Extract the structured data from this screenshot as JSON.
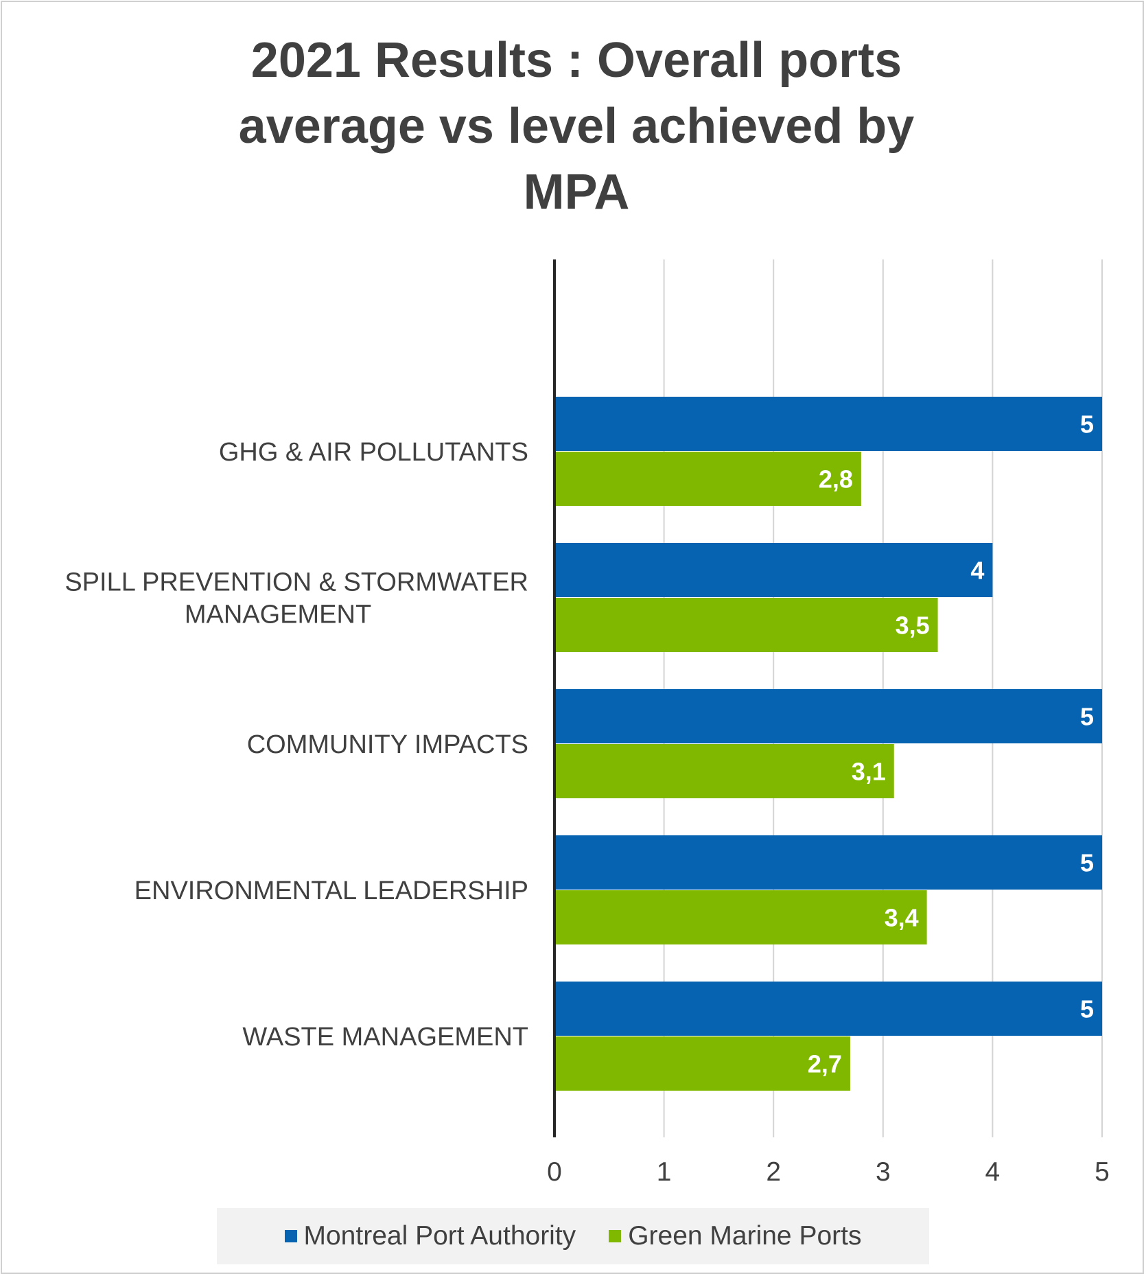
{
  "chart_data": {
    "type": "bar",
    "orientation": "horizontal",
    "title": "2021 Results : Overall ports average vs level achieved by MPA",
    "title_lines": [
      "2021 Results : Overall ports",
      "average vs level achieved by",
      "MPA"
    ],
    "categories": [
      "GHG & AIR POLLUTANTS",
      "SPILL PREVENTION & STORMWATER MANAGEMENT",
      "COMMUNITY IMPACTS",
      "ENVIRONMENTAL LEADERSHIP",
      "WASTE MANAGEMENT"
    ],
    "category_label_lines": [
      [
        "GHG & AIR POLLUTANTS"
      ],
      [
        "SPILL PREVENTION & STORMWATER",
        "MANAGEMENT"
      ],
      [
        "COMMUNITY IMPACTS"
      ],
      [
        "ENVIRONMENTAL LEADERSHIP"
      ],
      [
        "WASTE MANAGEMENT"
      ]
    ],
    "series": [
      {
        "name": "Montreal Port Authority",
        "color": "#0563b1",
        "values": [
          5,
          4,
          5,
          5,
          5
        ],
        "labels": [
          "5",
          "4",
          "5",
          "5",
          "5"
        ]
      },
      {
        "name": "Green Marine Ports",
        "color": "#80b800",
        "values": [
          2.8,
          3.5,
          3.1,
          3.4,
          2.7
        ],
        "labels": [
          "2,8",
          "3,5",
          "3,1",
          "3,4",
          "2,7"
        ]
      }
    ],
    "xlim": [
      0,
      5
    ],
    "x_ticks": [
      "0",
      "1",
      "2",
      "3",
      "4",
      "5"
    ],
    "grid": "vertical",
    "legend_position": "bottom"
  }
}
